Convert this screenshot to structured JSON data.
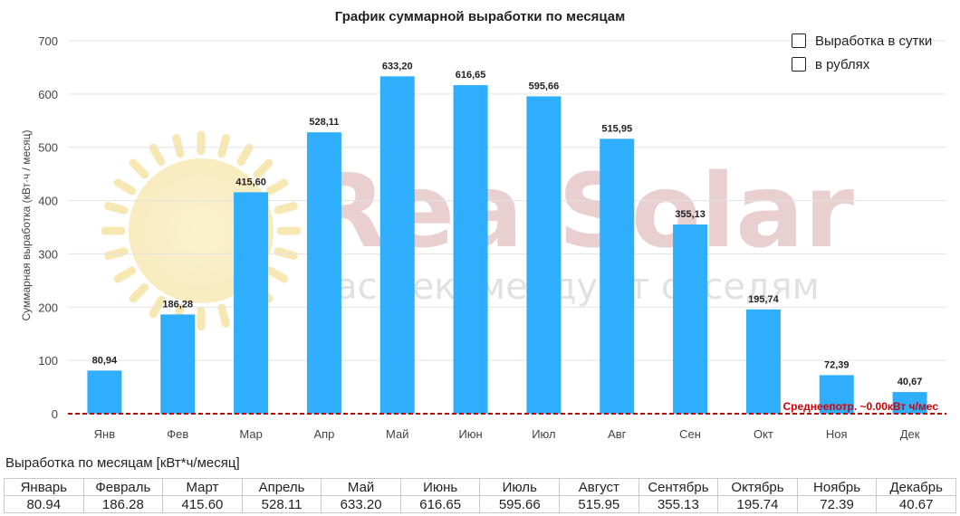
{
  "chart_data": {
    "type": "bar",
    "title": "График суммарной выработки по месяцам",
    "ylabel": "Суммарная выработка (кВт·ч / месяц)",
    "xlabel": "",
    "categories": [
      "Янв",
      "Фев",
      "Мар",
      "Апр",
      "Май",
      "Июн",
      "Июл",
      "Авг",
      "Сен",
      "Окт",
      "Ноя",
      "Дек"
    ],
    "values": [
      80.94,
      186.28,
      415.6,
      528.11,
      633.2,
      616.65,
      595.66,
      515.95,
      355.13,
      195.74,
      72.39,
      40.67
    ],
    "value_labels": [
      "80,94",
      "186,28",
      "415,60",
      "528,11",
      "633,20",
      "616,65",
      "595,66",
      "515,95",
      "355,13",
      "195,74",
      "72,39",
      "40,67"
    ],
    "ylim": [
      0,
      700
    ],
    "yticks": [
      0,
      100,
      200,
      300,
      400,
      500,
      600,
      700
    ],
    "grid": true,
    "bar_color": "#2eaefc",
    "reference_line": {
      "value": 0.0,
      "label": "Среднеепотр. ~0.00кВт ч/мес",
      "color": "#d10000"
    },
    "legend_position": "top-right"
  },
  "watermark": {
    "brand": "RealSolar",
    "tagline": "Нас рекомендуют соседям"
  },
  "legend": {
    "items": [
      {
        "label": "Выработка в сутки",
        "checked": false
      },
      {
        "label": "в рублях",
        "checked": false
      }
    ]
  },
  "table": {
    "title": "Выработка по месяцам [кВт*ч/месяц]",
    "headers": [
      "Январь",
      "Февраль",
      "Март",
      "Апрель",
      "Май",
      "Июнь",
      "Июль",
      "Август",
      "Сентябрь",
      "Октябрь",
      "Ноябрь",
      "Декабрь"
    ],
    "values": [
      "80.94",
      "186.28",
      "415.60",
      "528.11",
      "633.20",
      "616.65",
      "595.66",
      "515.95",
      "355.13",
      "195.74",
      "72.39",
      "40.67"
    ]
  }
}
